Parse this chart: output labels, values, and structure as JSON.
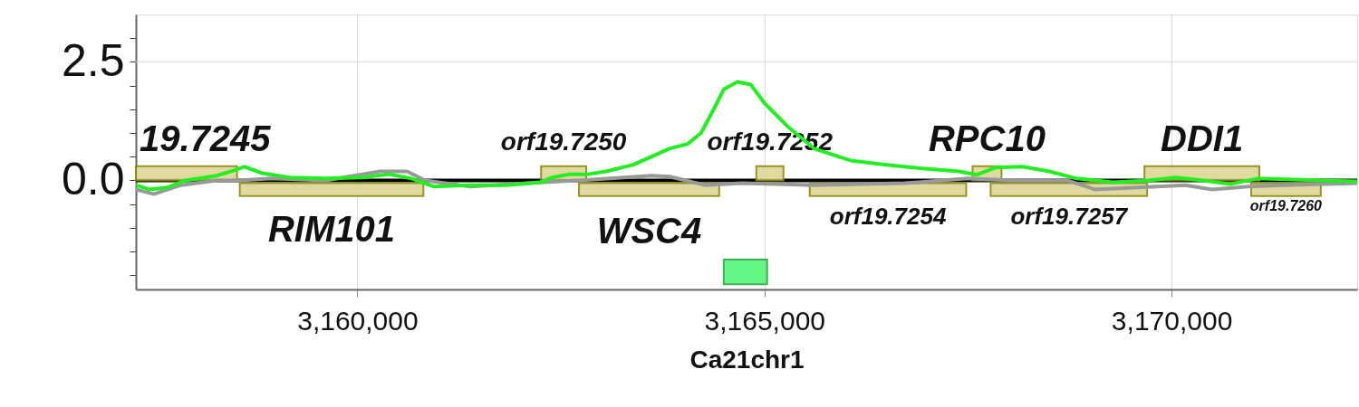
{
  "chart_data": {
    "type": "line",
    "xlabel": "Ca21chr1",
    "xlim": [
      3157280,
      3172280
    ],
    "ylim": [
      -2.3,
      3.5
    ],
    "xticks": [
      {
        "value": 3160000,
        "label": "3,160,000"
      },
      {
        "value": 3165000,
        "label": "3,165,000"
      },
      {
        "value": 3170000,
        "label": "3,170,000"
      }
    ],
    "yticks": [
      {
        "value": -2,
        "label": null
      },
      {
        "value": -1.5,
        "label": null
      },
      {
        "value": -1,
        "label": null
      },
      {
        "value": -0.5,
        "label": null
      },
      {
        "value": 0,
        "label": "0.0"
      },
      {
        "value": 0.5,
        "label": null
      },
      {
        "value": 1,
        "label": null
      },
      {
        "value": 1.5,
        "label": null
      },
      {
        "value": 2,
        "label": null
      },
      {
        "value": 2.5,
        "label": "2.5"
      },
      {
        "value": 3,
        "label": null
      }
    ],
    "grid": true,
    "series": [
      {
        "color": "#999999",
        "x": [
          3157280,
          3157500,
          3157833,
          3158278,
          3158556,
          3158944,
          3159611,
          3160278,
          3160611,
          3160833,
          3161389,
          3162278,
          3162722,
          3163611,
          3163833,
          3164278,
          3164722,
          3165611,
          3166722,
          3167500,
          3168056,
          3168722,
          3169056,
          3169833,
          3170167,
          3170500,
          3170944,
          3171389,
          3172280
        ],
        "values": [
          -0.19,
          -0.29,
          -0.1,
          0,
          0,
          0.04,
          0,
          0.19,
          0.19,
          0,
          -0.13,
          -0.04,
          0,
          0.1,
          0.08,
          -0.1,
          -0.06,
          -0.1,
          -0.06,
          0.04,
          0,
          0,
          -0.19,
          -0.13,
          -0.1,
          -0.19,
          -0.13,
          -0.1,
          -0.06
        ]
      },
      {
        "color": "#22ee22",
        "x": [
          3157280,
          3157444,
          3157667,
          3157889,
          3158278,
          3158522,
          3158611,
          3158833,
          3159167,
          3159611,
          3160056,
          3160389,
          3160667,
          3160944,
          3161389,
          3161833,
          3162256,
          3162389,
          3162611,
          3162833,
          3163056,
          3163389,
          3163833,
          3164056,
          3164222,
          3164389,
          3164500,
          3164667,
          3164833,
          3165000,
          3165278,
          3165611,
          3166056,
          3166500,
          3166944,
          3167389,
          3167611,
          3167833,
          3168167,
          3168500,
          3168833,
          3169278,
          3169722,
          3170056,
          3170389,
          3170722,
          3171056,
          3171500,
          3171833,
          3172280
        ],
        "values": [
          -0.1,
          -0.19,
          -0.15,
          0,
          0.1,
          0.23,
          0.29,
          0.15,
          0.06,
          0.04,
          0.06,
          0.13,
          0.04,
          -0.13,
          -0.1,
          -0.1,
          -0.04,
          0.06,
          0.13,
          0.13,
          0.19,
          0.33,
          0.67,
          0.77,
          1.0,
          1.54,
          1.92,
          2.08,
          2.02,
          1.63,
          1.15,
          0.67,
          0.42,
          0.33,
          0.25,
          0.19,
          0.12,
          0.27,
          0.29,
          0.19,
          0.04,
          -0.04,
          0,
          0.06,
          0,
          -0.08,
          0.04,
          0.02,
          0,
          -0.02
        ]
      }
    ],
    "ref_lines": [
      {
        "axis": "y",
        "value": 0,
        "color": "#000000"
      }
    ],
    "bands": [
      {
        "axis": "x",
        "from": 3157280,
        "to": 3158522,
        "color": "#ddd797",
        "label": "19.7245"
      },
      {
        "axis": "x",
        "from": 3158556,
        "to": 3160811,
        "color": "#ddd797",
        "label": "RIM101"
      },
      {
        "axis": "x",
        "from": 3162256,
        "to": 3162811,
        "color": "#ddd797",
        "label": "orf19.7250"
      },
      {
        "axis": "x",
        "from": 3162722,
        "to": 3164444,
        "color": "#ddd797",
        "label": "WSC4"
      },
      {
        "axis": "x",
        "from": 3164900,
        "to": 3165233,
        "color": "#ddd797",
        "label": "orf19.7252"
      },
      {
        "axis": "x",
        "from": 3165556,
        "to": 3167478,
        "color": "#ddd797",
        "label": "orf19.7254"
      },
      {
        "axis": "x",
        "from": 3167556,
        "to": 3167911,
        "color": "#ddd797",
        "label": "RPC10"
      },
      {
        "axis": "x",
        "from": 3167778,
        "to": 3169700,
        "color": "#ddd797",
        "label": "orf19.7257"
      },
      {
        "axis": "x",
        "from": 3169667,
        "to": 3171078,
        "color": "#ddd797",
        "label": "DDI1"
      },
      {
        "axis": "x",
        "from": 3170978,
        "to": 3171833,
        "color": "#ddd797",
        "label": "orf19.7260"
      },
      {
        "axis": "x",
        "from": 3164500,
        "to": 3165033,
        "color": "#55f77a"
      }
    ]
  }
}
